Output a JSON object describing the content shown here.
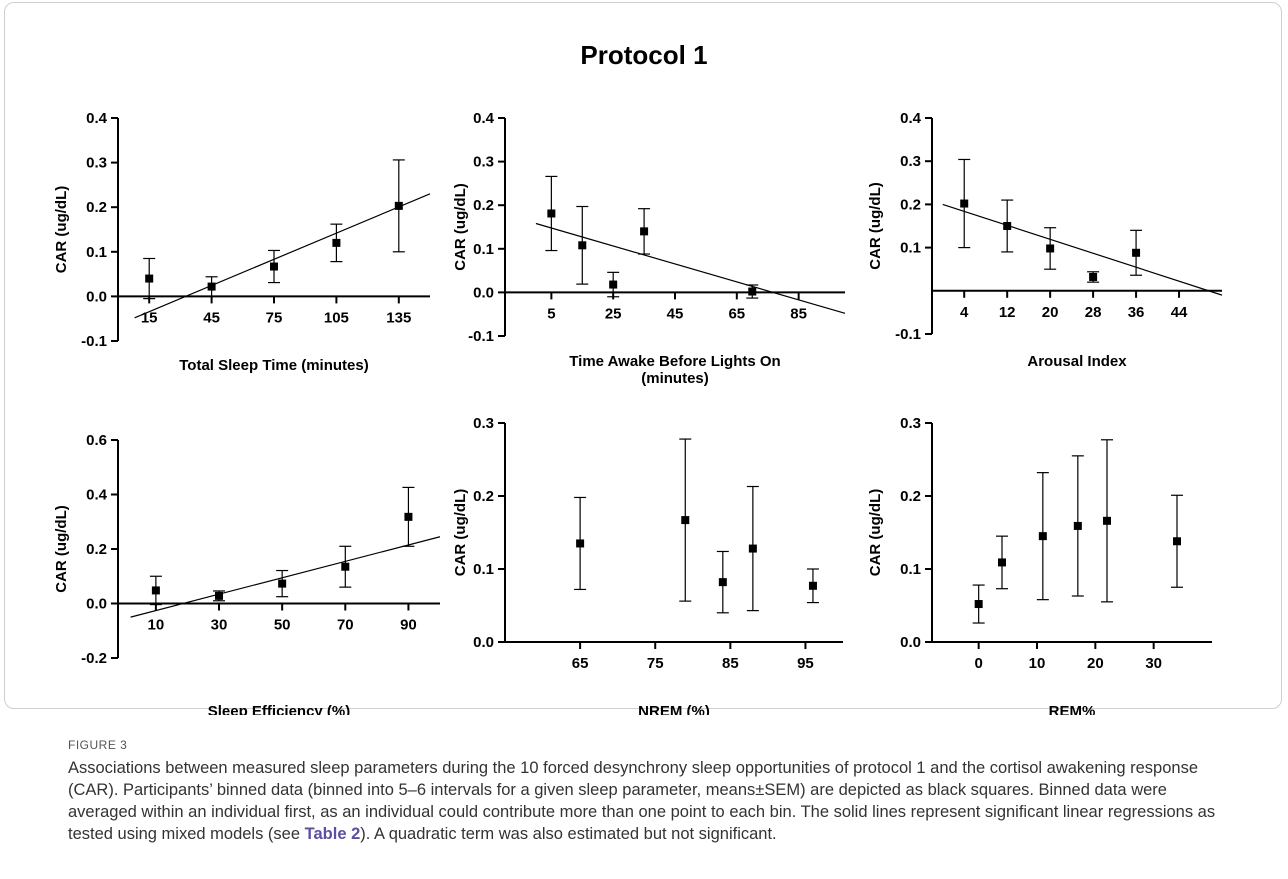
{
  "figure_title": "Protocol 1",
  "chart_data": [
    {
      "type": "scatter",
      "xlabel": "Total Sleep Time (minutes)",
      "ylabel": "CAR (ug/dL)",
      "xlim": [
        0,
        150
      ],
      "ylim": [
        -0.1,
        0.4
      ],
      "xticks": [
        15,
        45,
        75,
        105,
        135
      ],
      "yticks": [
        -0.1,
        0.0,
        0.1,
        0.2,
        0.3,
        0.4
      ],
      "ytick_labels": [
        "-0.1",
        "0.0",
        "0.1",
        "0.2",
        "0.3",
        "0.4"
      ],
      "points": [
        {
          "x": 15,
          "y": 0.04,
          "err": 0.045
        },
        {
          "x": 45,
          "y": 0.022,
          "err": 0.022
        },
        {
          "x": 75,
          "y": 0.067,
          "err": 0.036
        },
        {
          "x": 105,
          "y": 0.12,
          "err": 0.042
        },
        {
          "x": 135,
          "y": 0.203,
          "err": 0.103
        }
      ],
      "regression": {
        "x0": 8,
        "y0": -0.048,
        "x1": 150,
        "y1": 0.23
      }
    },
    {
      "type": "scatter",
      "xlabel": "Time Awake Before Lights On (minutes)",
      "ylabel": "CAR (ug/dL)",
      "xlim": [
        -10,
        100
      ],
      "ylim": [
        -0.1,
        0.4
      ],
      "xticks": [
        5,
        25,
        45,
        65,
        85
      ],
      "yticks": [
        -0.1,
        0.0,
        0.1,
        0.2,
        0.3,
        0.4
      ],
      "ytick_labels": [
        "-0.1",
        "0.0",
        "0.1",
        "0.2",
        "0.3",
        "0.4"
      ],
      "points": [
        {
          "x": 5,
          "y": 0.181,
          "err": 0.085
        },
        {
          "x": 15,
          "y": 0.108,
          "err": 0.089
        },
        {
          "x": 25,
          "y": 0.018,
          "err": 0.028
        },
        {
          "x": 35,
          "y": 0.14,
          "err": 0.052
        },
        {
          "x": 70,
          "y": 0.002,
          "err": 0.015
        }
      ],
      "regression": {
        "x0": 0,
        "y0": 0.158,
        "x1": 100,
        "y1": -0.048
      }
    },
    {
      "type": "scatter",
      "xlabel": "Arousal Index",
      "ylabel": "CAR (ug/dL)",
      "xlim": [
        -2,
        52
      ],
      "ylim": [
        -0.1,
        0.4
      ],
      "xticks": [
        4,
        12,
        20,
        28,
        36,
        44
      ],
      "yticks": [
        -0.1,
        0.1,
        0.2,
        0.3,
        0.4
      ],
      "ytick_labels": [
        "-0.1",
        "0.1",
        "0.2",
        "0.3",
        "0.4"
      ],
      "points": [
        {
          "x": 4,
          "y": 0.202,
          "err": 0.102
        },
        {
          "x": 12,
          "y": 0.15,
          "err": 0.06
        },
        {
          "x": 20,
          "y": 0.098,
          "err": 0.048
        },
        {
          "x": 28,
          "y": 0.032,
          "err": 0.012
        },
        {
          "x": 36,
          "y": 0.088,
          "err": 0.052
        }
      ],
      "regression": {
        "x0": 0,
        "y0": 0.2,
        "x1": 52,
        "y1": -0.01
      }
    },
    {
      "type": "scatter",
      "xlabel": "Sleep Efficiency (%)",
      "ylabel": "CAR (ug/dL)",
      "xlim": [
        -2,
        100
      ],
      "ylim": [
        -0.2,
        0.6
      ],
      "xticks": [
        10,
        30,
        50,
        70,
        90
      ],
      "yticks": [
        -0.2,
        0.0,
        0.2,
        0.4,
        0.6
      ],
      "ytick_labels": [
        "-0.2",
        "0.0",
        "0.2",
        "0.4",
        "0.6"
      ],
      "points": [
        {
          "x": 10,
          "y": 0.048,
          "err": 0.052
        },
        {
          "x": 30,
          "y": 0.028,
          "err": 0.018
        },
        {
          "x": 50,
          "y": 0.073,
          "err": 0.048
        },
        {
          "x": 70,
          "y": 0.135,
          "err": 0.075
        },
        {
          "x": 90,
          "y": 0.318,
          "err": 0.108
        }
      ],
      "regression": {
        "x0": 2,
        "y0": -0.05,
        "x1": 100,
        "y1": 0.245
      }
    },
    {
      "type": "scatter",
      "xlabel": "NREM (%)",
      "ylabel": "CAR (ug/dL)",
      "xlim": [
        55,
        100
      ],
      "ylim": [
        0,
        0.3
      ],
      "xticks": [
        65,
        75,
        85,
        95
      ],
      "yticks": [
        0.0,
        0.1,
        0.2,
        0.3
      ],
      "ytick_labels": [
        "0.0",
        "0.1",
        "0.2",
        "0.3"
      ],
      "points": [
        {
          "x": 65,
          "y": 0.135,
          "err": 0.063
        },
        {
          "x": 79,
          "y": 0.167,
          "err": 0.111
        },
        {
          "x": 84,
          "y": 0.082,
          "err": 0.042
        },
        {
          "x": 88,
          "y": 0.128,
          "err": 0.085
        },
        {
          "x": 96,
          "y": 0.077,
          "err": 0.023
        }
      ]
    },
    {
      "type": "scatter",
      "xlabel": "REM%",
      "ylabel": "CAR (ug/dL)",
      "xlim": [
        -8,
        40
      ],
      "ylim": [
        0,
        0.3
      ],
      "xticks": [
        0,
        10,
        20,
        30
      ],
      "yticks": [
        0.0,
        0.1,
        0.2,
        0.3
      ],
      "ytick_labels": [
        "0.0",
        "0.1",
        "0.2",
        "0.3"
      ],
      "points": [
        {
          "x": 0,
          "y": 0.052,
          "err": 0.026
        },
        {
          "x": 4,
          "y": 0.109,
          "err": 0.036
        },
        {
          "x": 11,
          "y": 0.145,
          "err": 0.087
        },
        {
          "x": 17,
          "y": 0.159,
          "err": 0.096
        },
        {
          "x": 22,
          "y": 0.166,
          "err": 0.111
        },
        {
          "x": 34,
          "y": 0.138,
          "err": 0.063
        }
      ]
    }
  ],
  "caption": {
    "label": "FIGURE 3",
    "text_before_link": "Associations between measured sleep parameters during the 10 forced desynchrony sleep opportunities of protocol 1 and the cortisol awakening response (CAR). Participants’ binned data (binned into 5–6 intervals for a given sleep parameter, means±SEM) are depicted as black squares. Binned data were averaged within an individual first, as an individual could contribute more than one point to each bin. The solid lines represent significant linear regressions as tested using mixed models (see ",
    "link_text": "Table 2",
    "text_after_link": "). A quadratic term was also estimated but not significant."
  }
}
